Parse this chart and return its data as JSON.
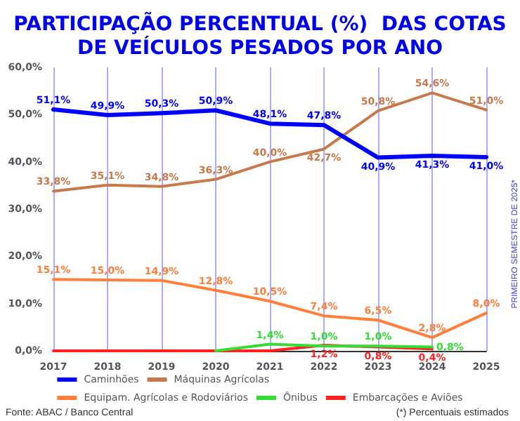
{
  "chart_data": {
    "type": "line",
    "title": "PARTICIPAÇÃO PERCENTUAL (%)  DAS COTAS\nDE VEÍCULOS PESADOS POR ANO",
    "categories": [
      "2017",
      "2018",
      "2019",
      "2020",
      "2021",
      "2022",
      "2023",
      "2024",
      "2025"
    ],
    "ylim": [
      0,
      60
    ],
    "yticks": [
      {
        "value": 0,
        "label": "0,0%"
      },
      {
        "value": 10,
        "label": "10,0%"
      },
      {
        "value": 20,
        "label": "20,0%"
      },
      {
        "value": 30,
        "label": "30,0%"
      },
      {
        "value": 40,
        "label": "40,0%"
      },
      {
        "value": 50,
        "label": "50,0%"
      },
      {
        "value": 60,
        "label": "60,0%"
      }
    ],
    "grid": "x",
    "legend": "bottom",
    "marker": "none",
    "line_style": "solid",
    "series": [
      {
        "name": "Caminhões",
        "color": "#0000ff",
        "values": [
          51.1,
          49.9,
          50.3,
          50.9,
          48.1,
          47.8,
          40.9,
          41.3,
          41.0
        ],
        "value_labels": [
          "51,1%",
          "49,9%",
          "50,3%",
          "50,9%",
          "48,1%",
          "47,8%",
          "40,9%",
          "41,3%",
          "41,0%"
        ]
      },
      {
        "name": "Máquinas Agrícolas",
        "color": "#c8794a",
        "values": [
          33.8,
          35.1,
          34.8,
          36.3,
          40.0,
          42.7,
          50.8,
          54.6,
          51.0
        ],
        "value_labels": [
          "33,8%",
          "35,1%",
          "34,8%",
          "36,3%",
          "40,0%",
          "42,7%",
          "50,8%",
          "54,6%",
          "51,0%"
        ]
      },
      {
        "name": "Equipam. Agrícolas e Rodoviários",
        "color": "#ff7f3a",
        "values": [
          15.1,
          15.0,
          14.9,
          12.8,
          10.5,
          7.4,
          6.5,
          2.8,
          8.0
        ],
        "value_labels": [
          "15,1%",
          "15,0%",
          "14,9%",
          "12,8%",
          "10,5%",
          "7,4%",
          "6,5%",
          "2,8%",
          "8,0%"
        ]
      },
      {
        "name": "Ônibus",
        "color": "#33dd33",
        "values": [
          null,
          null,
          null,
          0,
          1.4,
          1.0,
          1.0,
          0.8,
          null
        ],
        "value_labels": [
          null,
          null,
          null,
          null,
          "1,4%",
          "1,0%",
          "1,0%",
          "0,8%",
          null
        ]
      },
      {
        "name": "Embarcações e Aviões",
        "color": "#ff2020",
        "values": [
          0,
          0,
          0,
          0,
          0,
          1.2,
          0.8,
          0.4,
          null
        ],
        "value_labels": [
          null,
          null,
          null,
          null,
          null,
          "1,2%",
          "0,8%",
          "0,4%",
          null
        ]
      }
    ],
    "annotations": [
      "PRIMEIRO SEMESTRE DE 2025*",
      "(*) Percentuais estimados",
      "Fonte: ABAC / Banco Central"
    ]
  }
}
